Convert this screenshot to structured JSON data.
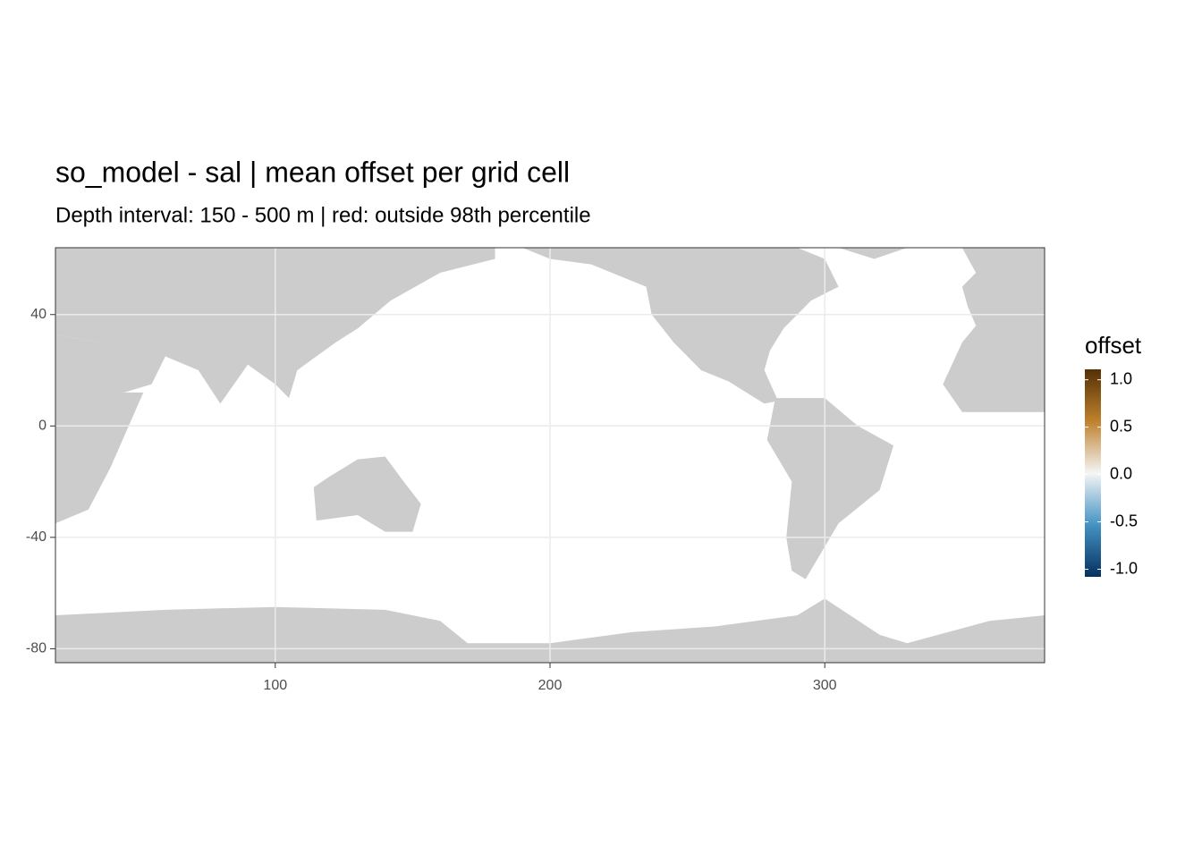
{
  "chart_data": {
    "type": "raster",
    "title": "so_model - sal  | mean offset per grid cell",
    "subtitle": "Depth interval: 150 - 500 m | red: outside 98th percentile",
    "xlim": [
      20,
      380
    ],
    "xticks": [
      100,
      200,
      300
    ],
    "ylim": [
      -85,
      64
    ],
    "yticks": [
      -80,
      -40,
      0,
      40
    ],
    "grid": true,
    "legend": {
      "title": "offset",
      "position": "right",
      "limits": [
        -1.08,
        1.11
      ],
      "ticks": [
        {
          "value": -1.0,
          "label": "-1.0"
        },
        -0.5,
        {
          "value": 0.0,
          "label": "0.0"
        },
        0.5,
        {
          "value": 1.0,
          "label": "1.0"
        }
      ],
      "colors": [
        "#053061",
        "#4393c3",
        "#f5f5f5",
        "#bf812d",
        "#543005"
      ]
    },
    "land_color": "#cccccc",
    "panel_color": "#ffffff"
  }
}
